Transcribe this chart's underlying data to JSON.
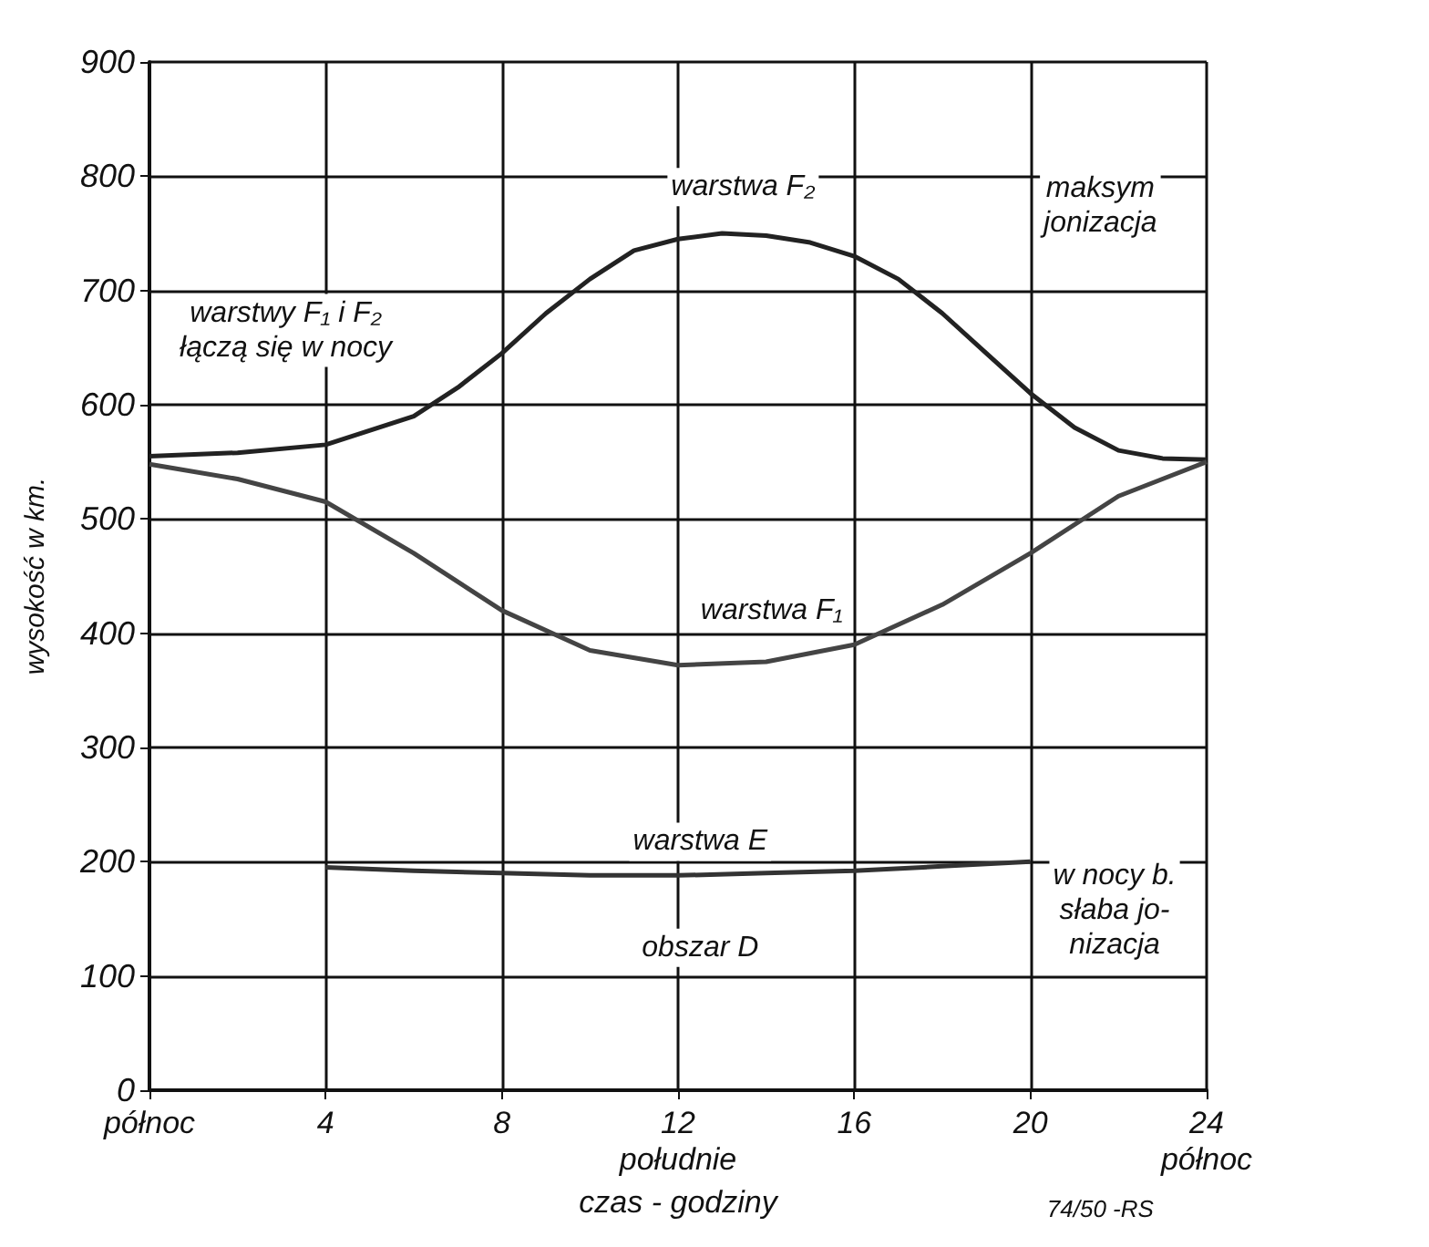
{
  "chart_data": {
    "type": "line",
    "xlabel": "czas - godziny",
    "ylabel": "wysokość w km.",
    "xlim": [
      0,
      24
    ],
    "xticks": [
      {
        "value": 0,
        "label": "północ"
      },
      4,
      8,
      {
        "value": 12,
        "label": "12\npołudnie"
      },
      16,
      20,
      {
        "value": 24,
        "label": "24\npółnoc"
      }
    ],
    "ylim": [
      0,
      900
    ],
    "yticks": [
      0,
      100,
      200,
      300,
      400,
      500,
      600,
      700,
      800,
      900
    ],
    "grid": true,
    "marker": "none",
    "line_style": "solid",
    "series": [
      {
        "color": "#222222",
        "x": [
          0,
          2,
          4,
          6,
          7,
          8,
          9,
          10,
          11,
          12,
          13,
          14,
          15,
          16,
          17,
          18,
          19,
          20,
          21,
          22,
          23,
          24
        ],
        "values": [
          555,
          558,
          565,
          590,
          615,
          645,
          680,
          710,
          735,
          745,
          750,
          748,
          742,
          730,
          710,
          680,
          645,
          610,
          580,
          560,
          553,
          552
        ]
      },
      {
        "color": "#444444",
        "x": [
          0,
          2,
          4,
          6,
          8,
          10,
          12,
          14,
          16,
          18,
          20,
          22,
          24
        ],
        "values": [
          548,
          535,
          515,
          470,
          420,
          385,
          372,
          375,
          390,
          425,
          470,
          520,
          550
        ]
      },
      {
        "color": "#333333",
        "x": [
          4,
          6,
          8,
          10,
          12,
          14,
          16,
          18,
          20
        ],
        "values": [
          195,
          192,
          190,
          188,
          188,
          190,
          192,
          196,
          200
        ]
      }
    ],
    "annotations": [
      "warstwa F₂",
      "maksym\njonizacja",
      "warstwy F₁ i F₂\nłączą się w nocy",
      "warstwa F₁",
      "warstwa E",
      "w nocy b.\nsłaba jo-\nnizacja",
      "obszar D",
      "74/50 -RS"
    ]
  }
}
